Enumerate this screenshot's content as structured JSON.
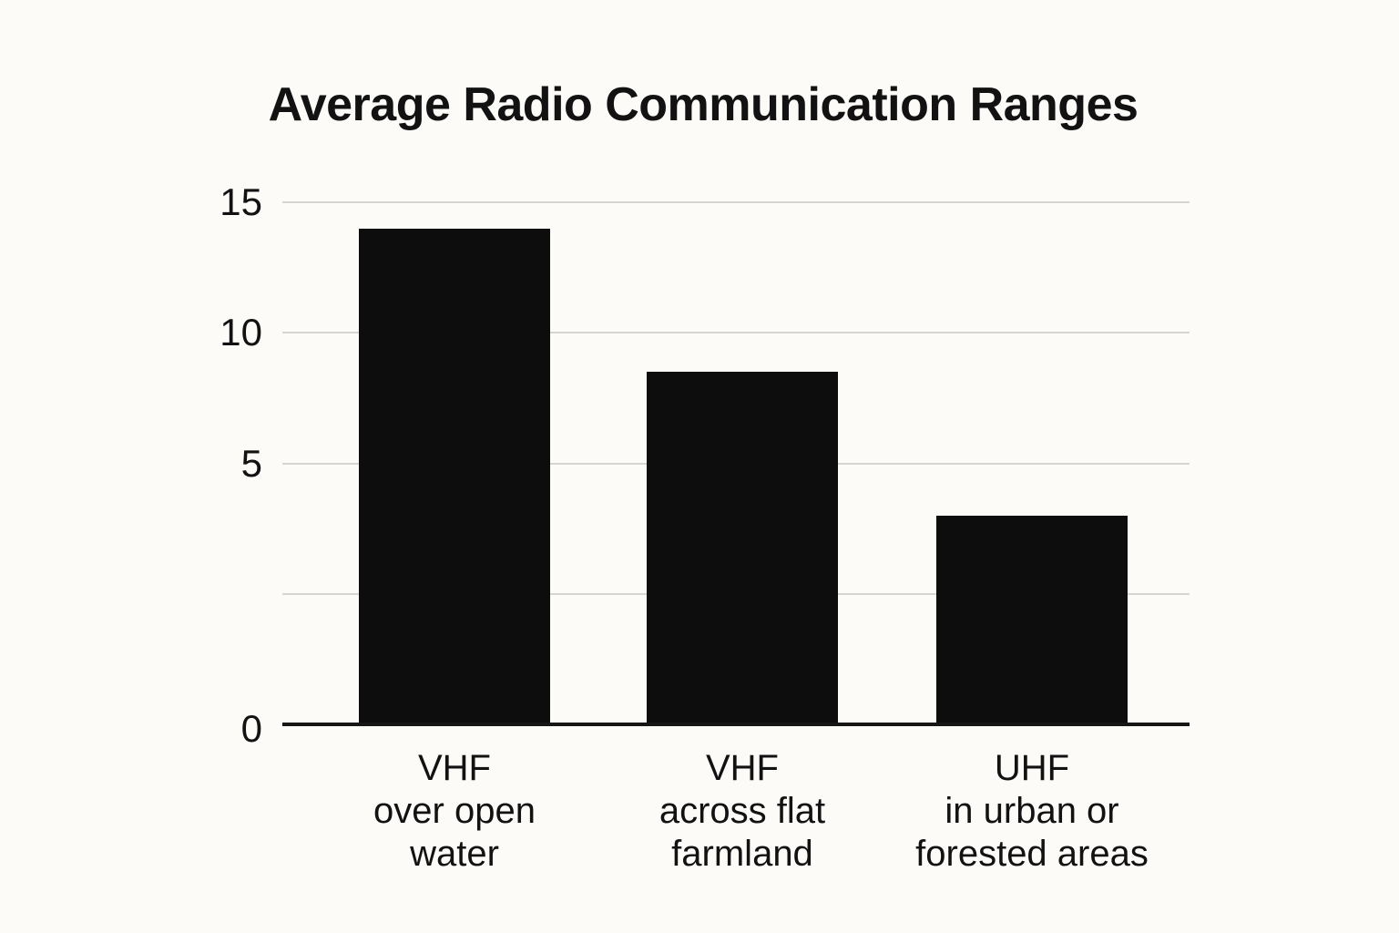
{
  "chart_data": {
    "type": "bar",
    "title": "Average Radio Communication Ranges",
    "xlabel": "",
    "ylabel": "",
    "categories": [
      {
        "lines": [
          "VHF",
          "over open",
          "water"
        ]
      },
      {
        "lines": [
          "VHF",
          "across flat",
          "farmland"
        ]
      },
      {
        "lines": [
          "UHF",
          "in urban or",
          "forested areas"
        ]
      }
    ],
    "values": [
      14,
      8.5,
      4
    ],
    "ylim": [
      0,
      15
    ],
    "y_axis_ticks": [
      {
        "value": 15,
        "label": "15"
      },
      {
        "value": 10,
        "label": "10"
      },
      {
        "value": 5,
        "label": "5"
      },
      {
        "value": 2.5,
        "label": ""
      },
      {
        "value": 0,
        "label": "0"
      }
    ],
    "scale_stops": [
      0,
      2.5,
      5,
      10,
      15
    ],
    "grid": true,
    "legend": false,
    "colors": {
      "background": "#fcfbf8",
      "bar": "#0d0d0d",
      "gridline": "#d7d5d1",
      "axis": "#161616",
      "text": "#121212"
    }
  }
}
